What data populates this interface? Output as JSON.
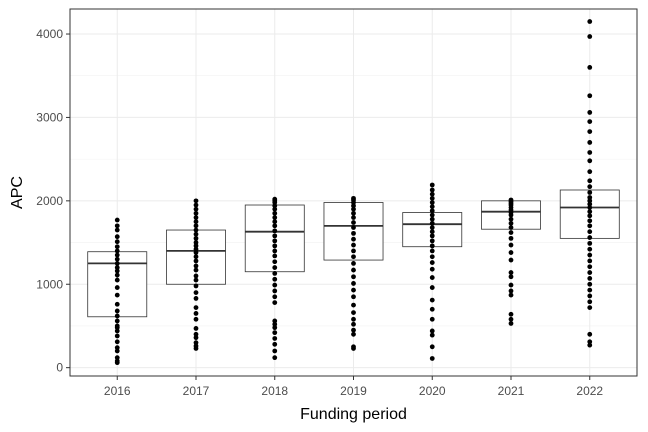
{
  "chart_data": {
    "type": "box",
    "xlabel": "Funding period",
    "ylabel": "APC",
    "ylim": [
      -100,
      4300
    ],
    "yticks": [
      0,
      1000,
      2000,
      3000,
      4000
    ],
    "grid": true,
    "categories": [
      "2016",
      "2017",
      "2018",
      "2019",
      "2020",
      "2021",
      "2022"
    ],
    "boxes": [
      {
        "category": "2016",
        "q1": 610,
        "median": 1250,
        "q3": 1390
      },
      {
        "category": "2017",
        "q1": 1000,
        "median": 1400,
        "q3": 1650
      },
      {
        "category": "2018",
        "q1": 1150,
        "median": 1630,
        "q3": 1950
      },
      {
        "category": "2019",
        "q1": 1290,
        "median": 1700,
        "q3": 1980
      },
      {
        "category": "2020",
        "q1": 1450,
        "median": 1720,
        "q3": 1860
      },
      {
        "category": "2021",
        "q1": 1660,
        "median": 1870,
        "q3": 2000
      },
      {
        "category": "2022",
        "q1": 1550,
        "median": 1920,
        "q3": 2130
      }
    ],
    "points": [
      {
        "category": "2016",
        "values": [
          80,
          60,
          120,
          200,
          240,
          310,
          380,
          440,
          480,
          500,
          560,
          620,
          680,
          760,
          870,
          960,
          1050,
          1110,
          1160,
          1200,
          1250,
          1300,
          1350,
          1400,
          1450,
          1510,
          1570,
          1650,
          1700,
          1770
        ]
      },
      {
        "category": "2017",
        "values": [
          230,
          260,
          300,
          360,
          400,
          470,
          580,
          650,
          720,
          830,
          900,
          980,
          1050,
          1100,
          1170,
          1220,
          1280,
          1330,
          1380,
          1420,
          1460,
          1500,
          1550,
          1600,
          1650,
          1700,
          1750,
          1800,
          1850,
          1900,
          1950,
          2000
        ]
      },
      {
        "category": "2018",
        "values": [
          120,
          200,
          280,
          350,
          420,
          480,
          520,
          560,
          780,
          850,
          920,
          990,
          1060,
          1130,
          1200,
          1270,
          1340,
          1400,
          1460,
          1520,
          1580,
          1640,
          1700,
          1750,
          1800,
          1850,
          1900,
          1940,
          1980,
          2000,
          2020
        ]
      },
      {
        "category": "2019",
        "values": [
          230,
          250,
          400,
          450,
          520,
          580,
          660,
          750,
          850,
          930,
          1010,
          1090,
          1170,
          1250,
          1330,
          1400,
          1470,
          1540,
          1610,
          1680,
          1740,
          1800,
          1850,
          1900,
          1940,
          1980,
          2010,
          2030
        ]
      },
      {
        "category": "2020",
        "values": [
          110,
          250,
          390,
          440,
          580,
          700,
          810,
          960,
          1080,
          1180,
          1260,
          1330,
          1400,
          1460,
          1520,
          1580,
          1630,
          1680,
          1730,
          1780,
          1830,
          1880,
          1930,
          1980,
          2030,
          2080,
          2130,
          2190
        ]
      },
      {
        "category": "2021",
        "values": [
          530,
          580,
          640,
          870,
          920,
          990,
          1090,
          1140,
          1290,
          1380,
          1470,
          1550,
          1620,
          1680,
          1730,
          1780,
          1830,
          1860,
          1890,
          1920,
          1950,
          1970,
          1990,
          2010
        ]
      },
      {
        "category": "2022",
        "values": [
          270,
          310,
          400,
          720,
          790,
          860,
          930,
          1000,
          1070,
          1140,
          1210,
          1280,
          1350,
          1420,
          1490,
          1560,
          1630,
          1700,
          1760,
          1820,
          1870,
          1920,
          1960,
          2000,
          2040,
          2100,
          2170,
          2240,
          2350,
          2480,
          2580,
          2700,
          2830,
          2950,
          3060,
          3260,
          3600,
          3970,
          4150
        ]
      }
    ]
  }
}
